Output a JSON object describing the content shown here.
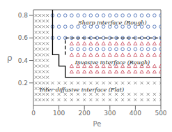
{
  "chart_data": {
    "type": "scatter",
    "xlabel": "Pe",
    "ylabel": "ρ",
    "xlim": [
      0,
      500
    ],
    "ylim": [
      0,
      0.85
    ],
    "xticks": [
      0,
      100,
      200,
      300,
      400,
      500
    ],
    "yticks": [
      0.2,
      0.4,
      0.6,
      0.8
    ],
    "grid": false,
    "series": [
      {
        "type": "scatter",
        "marker": "x",
        "color": "#777777",
        "x": [
          10,
          25,
          40,
          55,
          10,
          25,
          40,
          55,
          10,
          25,
          40,
          55,
          10,
          25,
          40,
          55,
          10,
          25,
          40,
          55,
          10,
          25,
          40,
          55,
          10,
          25,
          40,
          55,
          10,
          25,
          40,
          55,
          10,
          25,
          40,
          55,
          10,
          25,
          40,
          55,
          10,
          25,
          40,
          55,
          10,
          25,
          40,
          55,
          10,
          25,
          40,
          55,
          10,
          25,
          40,
          55,
          10,
          25,
          40,
          55,
          10,
          25,
          40,
          55
        ],
        "y": [
          0.8,
          0.8,
          0.8,
          0.8,
          0.75,
          0.75,
          0.75,
          0.75,
          0.7,
          0.7,
          0.7,
          0.7,
          0.65,
          0.65,
          0.65,
          0.65,
          0.6,
          0.6,
          0.6,
          0.6,
          0.55,
          0.55,
          0.55,
          0.55,
          0.5,
          0.5,
          0.5,
          0.5,
          0.45,
          0.45,
          0.45,
          0.45,
          0.4,
          0.4,
          0.4,
          0.4,
          0.35,
          0.35,
          0.35,
          0.35,
          0.3,
          0.3,
          0.3,
          0.3,
          0.25,
          0.25,
          0.25,
          0.25,
          0.2,
          0.2,
          0.2,
          0.2,
          0.15,
          0.15,
          0.15,
          0.15,
          0.1,
          0.1,
          0.1,
          0.1,
          0.05,
          0.05,
          0.05,
          0.05
        ]
      },
      {
        "type": "scatter",
        "marker": "x",
        "color": "#777777",
        "x": [
          75,
          100,
          125,
          150,
          175,
          200,
          225,
          250,
          275,
          300,
          325,
          350,
          375,
          400,
          425,
          450,
          475,
          500,
          75,
          100,
          125,
          150,
          175,
          200,
          225,
          250,
          275,
          300,
          325,
          350,
          375,
          400,
          425,
          450,
          475,
          500,
          75,
          100,
          125,
          150,
          175,
          200,
          225,
          250,
          275,
          300,
          325,
          350,
          375,
          400,
          425,
          450,
          475,
          500
        ],
        "y": [
          0.2,
          0.2,
          0.2,
          0.2,
          0.2,
          0.2,
          0.2,
          0.2,
          0.2,
          0.2,
          0.2,
          0.2,
          0.2,
          0.2,
          0.2,
          0.2,
          0.2,
          0.2,
          0.1,
          0.1,
          0.1,
          0.1,
          0.1,
          0.1,
          0.1,
          0.1,
          0.1,
          0.1,
          0.1,
          0.1,
          0.1,
          0.1,
          0.1,
          0.1,
          0.1,
          0.1,
          0.05,
          0.05,
          0.05,
          0.05,
          0.05,
          0.05,
          0.05,
          0.05,
          0.05,
          0.05,
          0.05,
          0.05,
          0.05,
          0.05,
          0.05,
          0.05,
          0.05,
          0.05
        ]
      },
      {
        "type": "scatter",
        "marker": "circle",
        "color": "#5577bb",
        "x": [
          75,
          100,
          125,
          150,
          175,
          200,
          225,
          250,
          275,
          300,
          325,
          350,
          375,
          400,
          425,
          450,
          475,
          500,
          75,
          100,
          125,
          150,
          175,
          200,
          225,
          250,
          275,
          300,
          325,
          350,
          375,
          400,
          425,
          450,
          475,
          500,
          75,
          100,
          125,
          150,
          175,
          200,
          225,
          250,
          275,
          300,
          325,
          350,
          375,
          400,
          425,
          450,
          475,
          500,
          150,
          175,
          200,
          225,
          250,
          275,
          300,
          325,
          350,
          375,
          400,
          425,
          450,
          475,
          500
        ],
        "y": [
          0.8,
          0.8,
          0.8,
          0.8,
          0.8,
          0.8,
          0.8,
          0.8,
          0.8,
          0.8,
          0.8,
          0.8,
          0.8,
          0.8,
          0.8,
          0.8,
          0.8,
          0.8,
          0.7,
          0.7,
          0.7,
          0.7,
          0.7,
          0.7,
          0.7,
          0.7,
          0.7,
          0.7,
          0.7,
          0.7,
          0.7,
          0.7,
          0.7,
          0.7,
          0.7,
          0.7,
          0.6,
          0.6,
          0.6,
          0.6,
          0.6,
          0.6,
          0.6,
          0.6,
          0.6,
          0.6,
          0.6,
          0.6,
          0.6,
          0.6,
          0.6,
          0.6,
          0.6,
          0.6,
          0.5,
          0.5,
          0.5,
          0.5,
          0.5,
          0.5,
          0.5,
          0.5,
          0.5,
          0.5,
          0.5,
          0.5,
          0.5,
          0.5,
          0.5
        ]
      },
      {
        "type": "scatter",
        "marker": "triangle",
        "color": "#cc5566",
        "x": [
          150,
          175,
          200,
          225,
          250,
          275,
          300,
          325,
          350,
          375,
          400,
          425,
          450,
          475,
          500,
          150,
          175,
          200,
          225,
          250,
          275,
          300,
          325,
          350,
          375,
          400,
          425,
          450,
          475,
          500,
          150,
          175,
          200,
          225,
          250,
          275,
          300,
          325,
          350,
          375,
          400,
          425,
          450,
          475,
          500,
          150,
          175,
          200,
          225,
          250,
          275,
          300,
          325,
          350,
          375,
          400,
          425,
          450,
          475,
          500
        ],
        "y": [
          0.55,
          0.55,
          0.55,
          0.55,
          0.55,
          0.55,
          0.55,
          0.55,
          0.55,
          0.55,
          0.55,
          0.55,
          0.55,
          0.55,
          0.55,
          0.45,
          0.45,
          0.45,
          0.45,
          0.45,
          0.45,
          0.45,
          0.45,
          0.45,
          0.45,
          0.45,
          0.45,
          0.45,
          0.45,
          0.45,
          0.35,
          0.35,
          0.35,
          0.35,
          0.35,
          0.35,
          0.35,
          0.35,
          0.35,
          0.35,
          0.35,
          0.35,
          0.35,
          0.35,
          0.35,
          0.3,
          0.3,
          0.3,
          0.3,
          0.3,
          0.3,
          0.3,
          0.3,
          0.3,
          0.3,
          0.3,
          0.3,
          0.3,
          0.3,
          0.3
        ]
      },
      {
        "type": "line",
        "line_style": "solid",
        "color": "#000000",
        "x": [
          75,
          75,
          100,
          100,
          125,
          125,
          500
        ],
        "y": [
          0.85,
          0.45,
          0.45,
          0.35,
          0.35,
          0.25,
          0.25
        ]
      },
      {
        "type": "line",
        "line_style": "dashed",
        "color": "#000000",
        "x": [
          125,
          500
        ],
        "y": [
          0.6,
          0.6
        ]
      },
      {
        "type": "line",
        "line_style": "dashed",
        "color": "#000000",
        "x": [
          125,
          125
        ],
        "y": [
          0.45,
          0.6
        ]
      }
    ],
    "annotations": [
      "Sharp interface (Rough)",
      "Invasive interface (Rough)",
      "Inter-diffusive interface (Flat)"
    ]
  }
}
